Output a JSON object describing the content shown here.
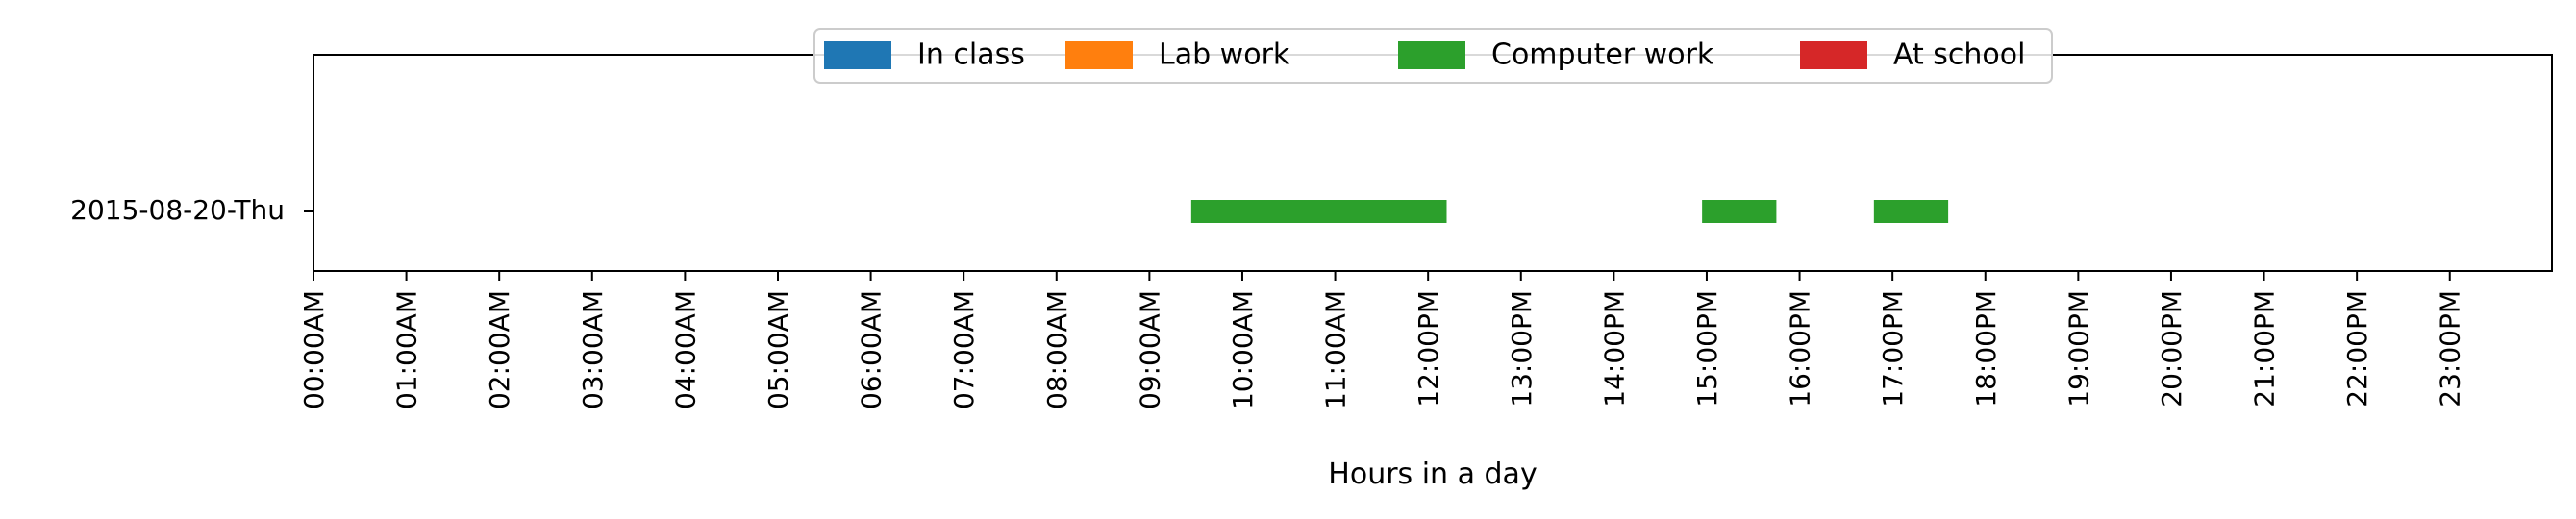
{
  "chart_data": {
    "type": "bar",
    "orientation": "horizontal",
    "title": "",
    "xlabel": "Hours in a day",
    "ylabel": "",
    "xlim": [
      0,
      24
    ],
    "x_ticks": [
      {
        "value": 0,
        "label": "00:00AM"
      },
      {
        "value": 1,
        "label": "01:00AM"
      },
      {
        "value": 2,
        "label": "02:00AM"
      },
      {
        "value": 3,
        "label": "03:00AM"
      },
      {
        "value": 4,
        "label": "04:00AM"
      },
      {
        "value": 5,
        "label": "05:00AM"
      },
      {
        "value": 6,
        "label": "06:00AM"
      },
      {
        "value": 7,
        "label": "07:00AM"
      },
      {
        "value": 8,
        "label": "08:00AM"
      },
      {
        "value": 9,
        "label": "09:00AM"
      },
      {
        "value": 10,
        "label": "10:00AM"
      },
      {
        "value": 11,
        "label": "11:00AM"
      },
      {
        "value": 12,
        "label": "12:00PM"
      },
      {
        "value": 13,
        "label": "13:00PM"
      },
      {
        "value": 14,
        "label": "14:00PM"
      },
      {
        "value": 15,
        "label": "15:00PM"
      },
      {
        "value": 16,
        "label": "16:00PM"
      },
      {
        "value": 17,
        "label": "17:00PM"
      },
      {
        "value": 18,
        "label": "18:00PM"
      },
      {
        "value": 19,
        "label": "19:00PM"
      },
      {
        "value": 20,
        "label": "20:00PM"
      },
      {
        "value": 21,
        "label": "21:00PM"
      },
      {
        "value": 22,
        "label": "22:00PM"
      },
      {
        "value": 23,
        "label": "23:00PM"
      }
    ],
    "categories": [
      "2015-08-20-Thu"
    ],
    "legend": {
      "placement": "upper center",
      "entries": [
        {
          "name": "In class",
          "color": "#1f77b4"
        },
        {
          "name": "Lab work",
          "color": "#ff7f0e"
        },
        {
          "name": "Computer work",
          "color": "#2ca02c"
        },
        {
          "name": "At school",
          "color": "#d62728"
        }
      ]
    },
    "segments": [
      {
        "category": "2015-08-20-Thu",
        "activity": "Computer work",
        "start": 9.45,
        "end": 12.2,
        "color": "#2ca02c"
      },
      {
        "category": "2015-08-20-Thu",
        "activity": "Computer work",
        "start": 14.95,
        "end": 15.75,
        "color": "#2ca02c"
      },
      {
        "category": "2015-08-20-Thu",
        "activity": "Computer work",
        "start": 16.8,
        "end": 17.6,
        "color": "#2ca02c"
      }
    ],
    "grid": false
  }
}
